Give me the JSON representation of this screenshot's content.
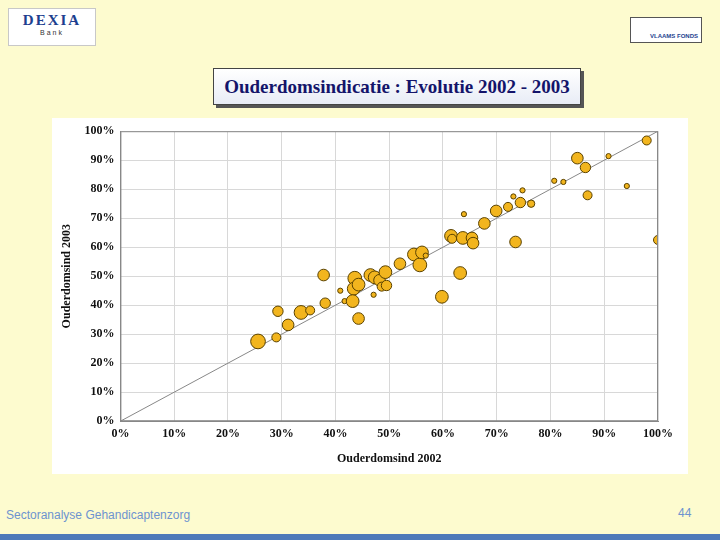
{
  "slide": {
    "logo_left": "DEXIA",
    "logo_left_sub": "Bank",
    "logo_right": "VLAAMS FONDS",
    "footer": "Sectoranalyse Gehandicaptenzorg",
    "page": "44"
  },
  "chart_data": {
    "type": "bubble",
    "title": "Ouderdomsindicatie : Evolutie 2002 - 2003",
    "x_label": "Ouderdomsind 2002",
    "y_label": "Ouderdomsind 2003",
    "x": [
      25.6,
      29.3,
      29.0,
      31.2,
      33.6,
      35.3,
      37.8,
      38.1,
      40.9,
      41.7,
      43.6,
      43.4,
      43.2,
      44.3,
      44.3,
      46.5,
      47.3,
      48.2,
      47.1,
      48.6,
      49.3,
      49.5,
      52.0,
      54.6,
      55.7,
      56.1,
      56.8,
      59.8,
      61.5,
      61.7,
      63.7,
      63.2,
      63.9,
      65.4,
      65.6,
      67.7,
      69.9,
      72.1,
      73.1,
      73.5,
      74.4,
      74.8,
      76.4,
      80.7,
      82.4,
      85.0,
      86.5,
      86.9,
      90.8,
      94.2,
      97.9,
      100.0
    ],
    "values": [
      27.5,
      37.9,
      28.9,
      33.2,
      37.5,
      38.2,
      50.4,
      40.7,
      45.0,
      41.4,
      49.3,
      45.7,
      41.4,
      35.4,
      47.1,
      50.4,
      49.6,
      48.6,
      43.6,
      46.4,
      51.4,
      46.8,
      54.3,
      57.5,
      53.9,
      58.2,
      57.1,
      42.9,
      63.9,
      62.9,
      63.2,
      51.1,
      71.4,
      63.2,
      61.4,
      68.2,
      72.5,
      73.9,
      77.5,
      61.8,
      75.4,
      79.6,
      75.0,
      82.9,
      82.5,
      90.7,
      87.5,
      77.9,
      91.4,
      81.1,
      96.8,
      62.5
    ],
    "sizes": [
      8,
      4,
      3,
      5,
      7,
      3,
      5,
      4,
      1,
      1,
      7,
      6,
      6,
      5,
      6,
      6,
      6,
      5,
      1,
      3,
      6,
      4,
      5,
      6,
      7,
      6,
      1,
      6,
      6,
      3,
      6,
      6,
      1,
      5,
      5,
      5,
      5,
      3,
      1,
      5,
      4,
      1,
      2,
      1,
      1,
      5,
      4,
      3,
      1,
      1,
      3,
      3
    ],
    "color": "#f2b51e",
    "diagonal": {
      "x": [
        0,
        100
      ],
      "y": [
        0,
        100
      ]
    },
    "xlim": [
      0,
      100
    ],
    "ylim": [
      0,
      100
    ],
    "xticks": [
      {
        "value": 0,
        "label": "0%"
      },
      {
        "value": 10,
        "label": "10%"
      },
      {
        "value": 20,
        "label": "20%"
      },
      {
        "value": 30,
        "label": "30%"
      },
      {
        "value": 40,
        "label": "40%"
      },
      {
        "value": 50,
        "label": "50%"
      },
      {
        "value": 60,
        "label": "60%"
      },
      {
        "value": 70,
        "label": "70%"
      },
      {
        "value": 80,
        "label": "80%"
      },
      {
        "value": 90,
        "label": "90%"
      },
      {
        "value": 100,
        "label": "100%"
      }
    ],
    "yticks": [
      {
        "value": 0,
        "label": "0%"
      },
      {
        "value": 10,
        "label": "10%"
      },
      {
        "value": 20,
        "label": "20%"
      },
      {
        "value": 30,
        "label": "30%"
      },
      {
        "value": 40,
        "label": "40%"
      },
      {
        "value": 50,
        "label": "50%"
      },
      {
        "value": 60,
        "label": "60%"
      },
      {
        "value": 70,
        "label": "70%"
      },
      {
        "value": 80,
        "label": "80%"
      },
      {
        "value": 90,
        "label": "90%"
      },
      {
        "value": 100,
        "label": "100%"
      }
    ],
    "grid": true
  }
}
